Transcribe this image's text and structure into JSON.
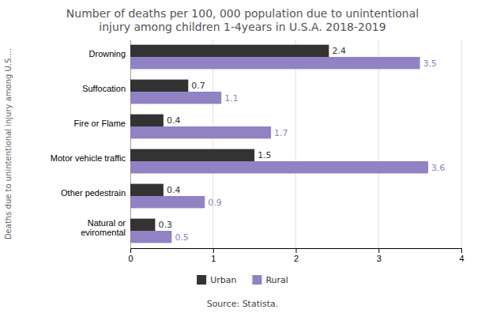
{
  "chart_data": {
    "type": "bar",
    "orientation": "horizontal",
    "title": "Number of deaths per 100, 000 population due to unintentional\ninjury among children 1-4years in U.S.A. 2018-2019",
    "ylabel": "Deaths due to unintentional injury among U.S....",
    "categories": [
      "Drowning",
      "Suffocation",
      "Fire or Flame",
      "Motor vehicle traffic",
      "Other pedestrain",
      "Natural or\neviromental"
    ],
    "series": [
      {
        "name": "Urban",
        "color": "#333333",
        "values": [
          2.4,
          0.7,
          0.4,
          1.5,
          0.4,
          0.3
        ]
      },
      {
        "name": "Rural",
        "color": "#9182c4",
        "values": [
          3.5,
          1.1,
          1.7,
          3.6,
          0.9,
          0.5
        ]
      }
    ],
    "xlim": [
      0,
      4
    ],
    "xticks": [
      0,
      1,
      2,
      3,
      4
    ],
    "grid": true,
    "legend": "bottom",
    "data_labels": true,
    "annotations": [
      "Source: Statista."
    ]
  }
}
